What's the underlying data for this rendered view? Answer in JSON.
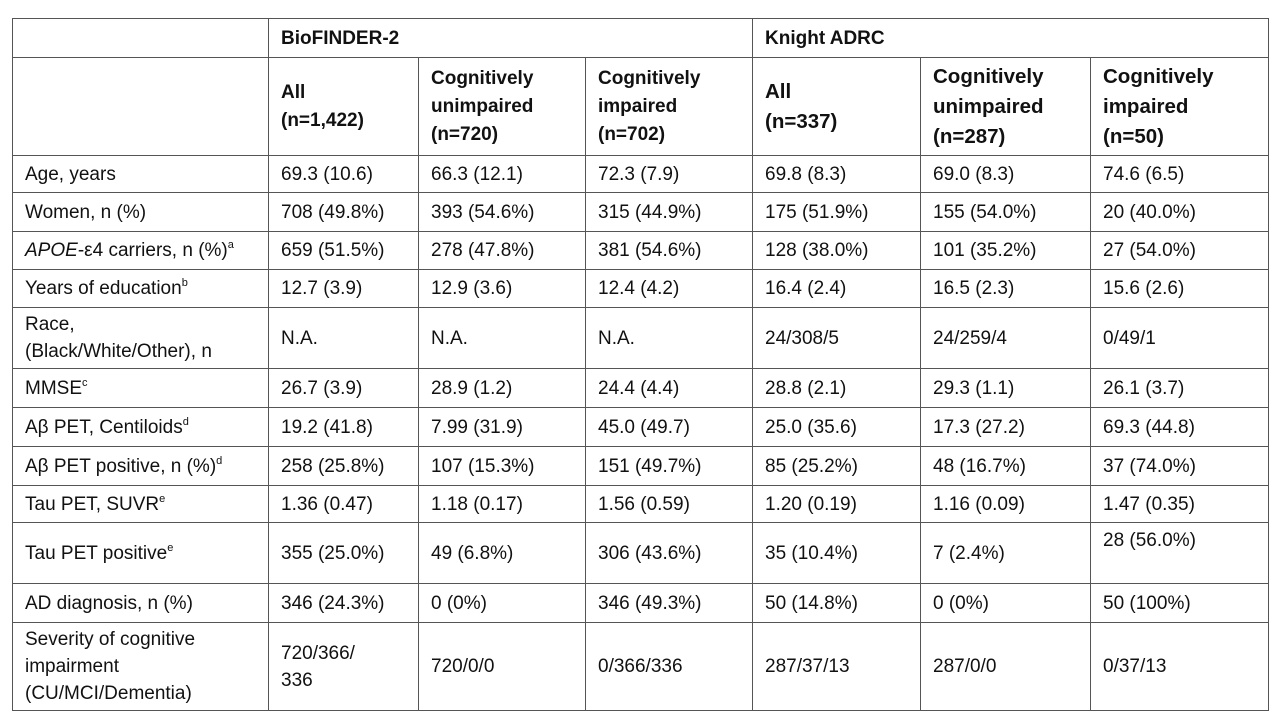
{
  "table": {
    "groups": [
      "BioFINDER-2",
      "Knight ADRC"
    ],
    "columns": [
      [
        "All",
        "(n=1,422)"
      ],
      [
        "Cognitively",
        "unimpaired",
        "(n=720)"
      ],
      [
        "Cognitively",
        "impaired",
        "(n=702)"
      ],
      [
        "All",
        "(n=337)"
      ],
      [
        "Cognitively",
        "unimpaired",
        "(n=287)"
      ],
      [
        "Cognitively",
        "impaired",
        "(n=50)"
      ]
    ],
    "rows": [
      {
        "label": [
          "Age, years"
        ],
        "cells": [
          "69.3 (10.6)",
          "66.3 (12.1)",
          "72.3 (7.9)",
          "69.8 (8.3)",
          "69.0 (8.3)",
          "74.6 (6.5)"
        ]
      },
      {
        "label": [
          "Women, n (%)"
        ],
        "cells": [
          "708 (49.8%)",
          "393 (54.6%)",
          "315 (44.9%)",
          "175 (51.9%)",
          "155 (54.0%)",
          "20 (40.0%)"
        ]
      },
      {
        "label_italic": "APOE",
        "label": [
          "-ε4 carriers, n (%)"
        ],
        "sup": "a",
        "cells": [
          "659 (51.5%)",
          "278 (47.8%)",
          "381 (54.6%)",
          "128 (38.0%)",
          "101 (35.2%)",
          "27 (54.0%)"
        ]
      },
      {
        "label": [
          "Years of education"
        ],
        "sup": "b",
        "cells": [
          "12.7 (3.9)",
          "12.9 (3.6)",
          "12.4 (4.2)",
          "16.4 (2.4)",
          "16.5 (2.3)",
          "15.6 (2.6)"
        ]
      },
      {
        "label": [
          "Race,",
          "(Black/White/Other), n"
        ],
        "cells": [
          "N.A.",
          "N.A.",
          "N.A.",
          "24/308/5",
          "24/259/4",
          "0/49/1"
        ]
      },
      {
        "label": [
          "MMSE"
        ],
        "sup": "c",
        "cells": [
          "26.7 (3.9)",
          "28.9 (1.2)",
          "24.4 (4.4)",
          "28.8 (2.1)",
          "29.3 (1.1)",
          "26.1 (3.7)"
        ]
      },
      {
        "label": [
          "Aβ PET, Centiloids"
        ],
        "sup": "d",
        "cells": [
          "19.2 (41.8)",
          "7.99 (31.9)",
          "45.0 (49.7)",
          "25.0 (35.6)",
          "17.3 (27.2)",
          "69.3 (44.8)"
        ]
      },
      {
        "label": [
          "Aβ PET positive, n (%)"
        ],
        "sup": "d",
        "cells": [
          "258 (25.8%)",
          "107 (15.3%)",
          "151 (49.7%)",
          "85 (25.2%)",
          "48 (16.7%)",
          "37 (74.0%)"
        ]
      },
      {
        "label": [
          "Tau PET, SUVR"
        ],
        "sup": "e",
        "cells": [
          "1.36 (0.47)",
          "1.18 (0.17)",
          "1.56 (0.59)",
          "1.20 (0.19)",
          "1.16 (0.09)",
          "1.47 (0.35)"
        ]
      },
      {
        "label": [
          "Tau PET positive"
        ],
        "sup": "e",
        "cells": [
          "355 (25.0%)",
          "49 (6.8%)",
          "306 (43.6%)",
          "35 (10.4%)",
          "7 (2.4%)",
          "28 (56.0%)"
        ]
      },
      {
        "label": [
          "AD diagnosis, n (%)"
        ],
        "cells": [
          "346 (24.3%)",
          "0 (0%)",
          "346 (49.3%)",
          "50 (14.8%)",
          "0 (0%)",
          "50 (100%)"
        ]
      },
      {
        "label": [
          "Severity of cognitive",
          "impairment",
          "(CU/MCI/Dementia)"
        ],
        "cells": [
          [
            "720/366/",
            "336"
          ],
          "720/0/0",
          "0/366/336",
          "287/37/13",
          "287/0/0",
          "0/37/13"
        ]
      }
    ]
  }
}
